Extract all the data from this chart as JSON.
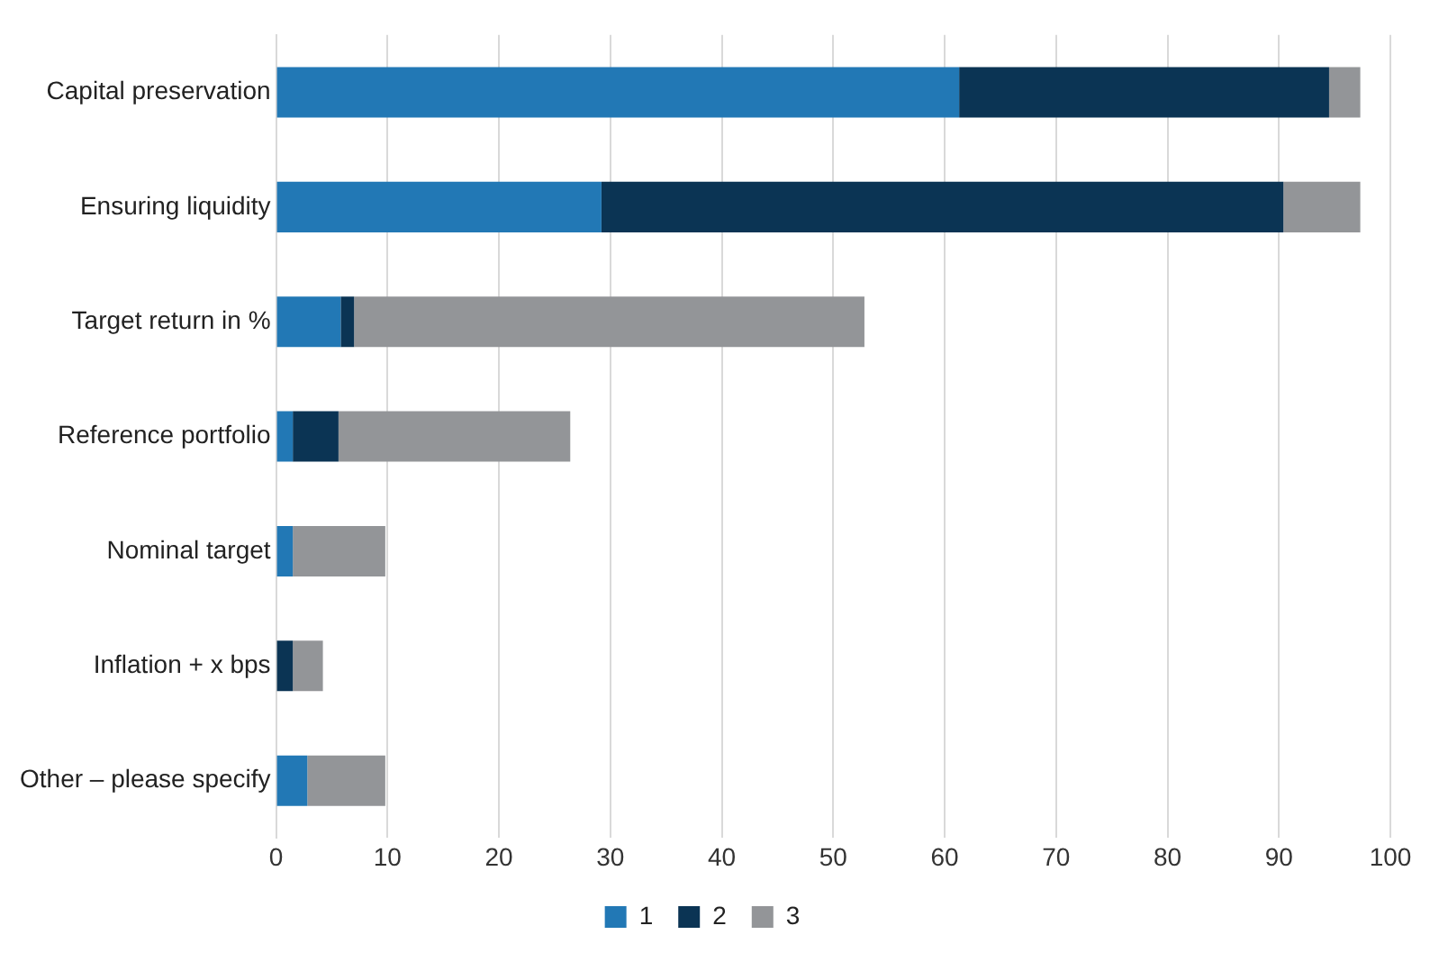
{
  "chart_data": {
    "type": "bar",
    "orientation": "horizontal",
    "stacked": true,
    "categories": [
      "Capital preservation",
      "Ensuring liquidity",
      "Target return in %",
      "Reference portfolio",
      "Nominal target",
      "Inflation + x bps",
      "Other – please specify"
    ],
    "series": [
      {
        "name": "1",
        "color": "#2278b5",
        "values": [
          61.3,
          29.2,
          5.8,
          1.5,
          1.5,
          0,
          2.8
        ]
      },
      {
        "name": "2",
        "color": "#0b3454",
        "values": [
          33.2,
          61.2,
          1.2,
          4.1,
          0,
          1.5,
          0
        ]
      },
      {
        "name": "3",
        "color": "#939598",
        "values": [
          2.8,
          6.9,
          45.8,
          20.8,
          8.3,
          2.7,
          7.0
        ]
      }
    ],
    "xlim": [
      0,
      100
    ],
    "xticks": [
      0,
      10,
      20,
      30,
      40,
      50,
      60,
      70,
      80,
      90,
      100
    ],
    "grid": "x",
    "legend": "bottom"
  }
}
